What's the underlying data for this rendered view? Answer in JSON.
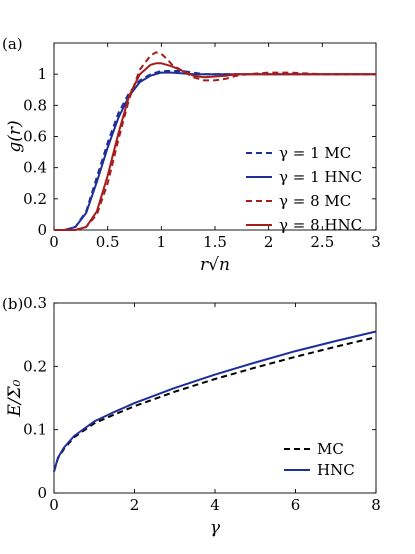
{
  "colors": {
    "blue": "#1f2f9a",
    "red": "#a51d1d",
    "black": "#000000"
  },
  "chart_data": [
    {
      "type": "line",
      "panel_label": "(a)",
      "xlabel": "r√n",
      "ylabel": "g(r)",
      "xlim": [
        0,
        3
      ],
      "ylim": [
        0,
        1.2
      ],
      "xticks": [
        "0",
        "0.5",
        "1",
        "1.5",
        "2",
        "2.5",
        "3"
      ],
      "yticks": [
        "0",
        "0.2",
        "0.4",
        "0.6",
        "0.8",
        "1"
      ],
      "xtick_values": [
        0,
        0.5,
        1,
        1.5,
        2,
        2.5,
        3
      ],
      "ytick_values": [
        0,
        0.2,
        0.4,
        0.6,
        0.8,
        1
      ],
      "legend_position": "right",
      "series": [
        {
          "name": "γ = 1 MC",
          "color": "#1f2f9a",
          "dash": true,
          "x": [
            0,
            0.1,
            0.2,
            0.3,
            0.4,
            0.5,
            0.6,
            0.7,
            0.8,
            0.9,
            1.0,
            1.1,
            1.2,
            1.3,
            1.4,
            1.5,
            1.7,
            2.0,
            2.5,
            3.0
          ],
          "y": [
            0,
            0.0,
            0.02,
            0.12,
            0.34,
            0.56,
            0.75,
            0.88,
            0.96,
            1.0,
            1.02,
            1.02,
            1.02,
            1.01,
            1.0,
            1.0,
            1.0,
            1.0,
            1.0,
            1.0
          ]
        },
        {
          "name": "γ = 1 HNC",
          "color": "#1f2f9a",
          "dash": false,
          "x": [
            0,
            0.1,
            0.2,
            0.3,
            0.4,
            0.5,
            0.6,
            0.7,
            0.8,
            0.9,
            1.0,
            1.1,
            1.2,
            1.3,
            1.4,
            1.5,
            1.7,
            2.0,
            2.5,
            3.0
          ],
          "y": [
            0,
            0.0,
            0.02,
            0.11,
            0.31,
            0.53,
            0.72,
            0.86,
            0.95,
            0.99,
            1.01,
            1.01,
            1.005,
            1.0,
            1.0,
            1.0,
            1.0,
            1.0,
            1.0,
            1.0
          ]
        },
        {
          "name": "γ = 8 MC",
          "color": "#a51d1d",
          "dash": true,
          "x": [
            0,
            0.2,
            0.3,
            0.4,
            0.5,
            0.6,
            0.7,
            0.8,
            0.9,
            0.95,
            1.0,
            1.05,
            1.1,
            1.2,
            1.3,
            1.4,
            1.5,
            1.6,
            1.7,
            1.8,
            2.0,
            2.2,
            2.5,
            3.0
          ],
          "y": [
            0,
            0.0,
            0.02,
            0.1,
            0.3,
            0.58,
            0.84,
            1.03,
            1.12,
            1.14,
            1.13,
            1.1,
            1.06,
            1.02,
            0.98,
            0.96,
            0.96,
            0.97,
            0.99,
            1.0,
            1.01,
            1.01,
            1.0,
            1.0
          ]
        },
        {
          "name": "γ = 8 HNC",
          "color": "#a51d1d",
          "dash": false,
          "x": [
            0,
            0.2,
            0.3,
            0.4,
            0.5,
            0.6,
            0.7,
            0.8,
            0.9,
            0.95,
            1.0,
            1.05,
            1.1,
            1.2,
            1.3,
            1.4,
            1.5,
            1.6,
            1.7,
            1.8,
            2.0,
            2.5,
            3.0
          ],
          "y": [
            0,
            0.0,
            0.02,
            0.12,
            0.35,
            0.62,
            0.86,
            1.0,
            1.06,
            1.07,
            1.07,
            1.06,
            1.05,
            1.02,
            0.99,
            0.98,
            0.985,
            0.99,
            1.0,
            1.0,
            1.0,
            1.0,
            1.0
          ]
        }
      ]
    },
    {
      "type": "line",
      "panel_label": "(b)",
      "xlabel": "γ",
      "ylabel": "E/Σ₀",
      "xlim": [
        0,
        8
      ],
      "ylim": [
        0,
        0.3
      ],
      "xticks": [
        "0",
        "2",
        "4",
        "6",
        "8"
      ],
      "yticks": [
        "0",
        "0.1",
        "0.2",
        "0.3"
      ],
      "xtick_values": [
        0,
        2,
        4,
        6,
        8
      ],
      "ytick_values": [
        0,
        0.1,
        0.2,
        0.3
      ],
      "legend_position": "bottom-right",
      "series": [
        {
          "name": "MC",
          "color": "#000000",
          "dash": true,
          "x": [
            0,
            0.1,
            0.25,
            0.5,
            1,
            1.5,
            2,
            3,
            4,
            5,
            6,
            7,
            8
          ],
          "y": [
            0.034,
            0.055,
            0.07,
            0.088,
            0.11,
            0.124,
            0.137,
            0.16,
            0.18,
            0.198,
            0.215,
            0.231,
            0.246
          ]
        },
        {
          "name": "HNC",
          "color": "#1f2f9a",
          "dash": false,
          "x": [
            0,
            0.1,
            0.25,
            0.5,
            1,
            1.5,
            2,
            3,
            4,
            5,
            6,
            7,
            8
          ],
          "y": [
            0.034,
            0.056,
            0.072,
            0.09,
            0.113,
            0.128,
            0.142,
            0.166,
            0.187,
            0.206,
            0.224,
            0.24,
            0.255
          ]
        }
      ]
    }
  ]
}
